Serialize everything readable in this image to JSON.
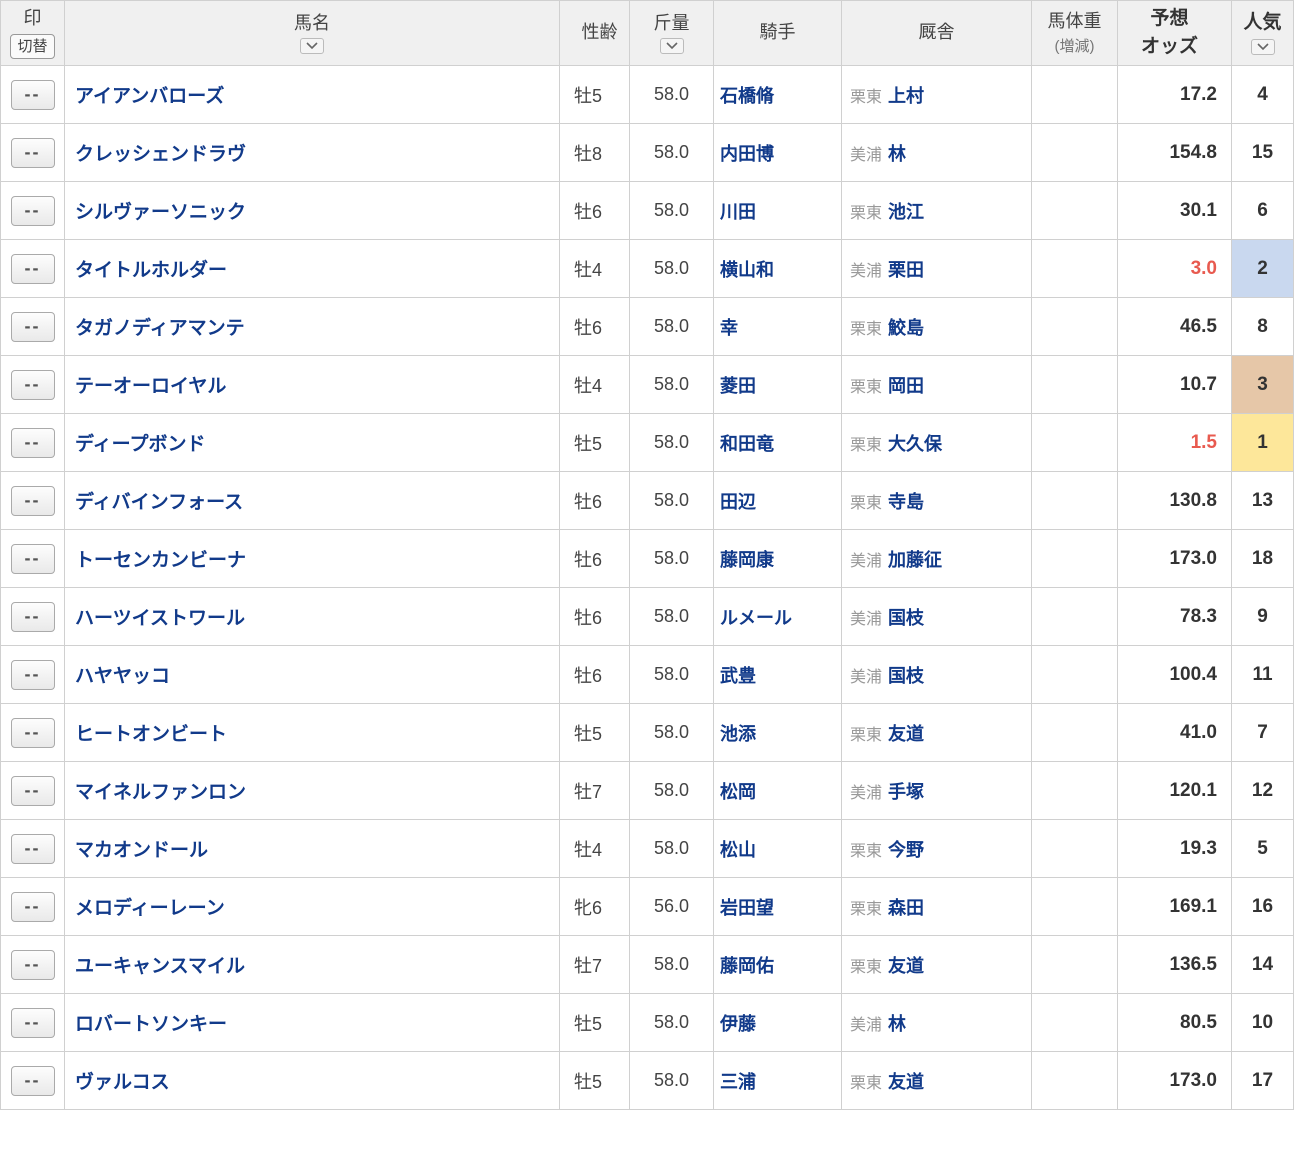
{
  "columns": {
    "mark": {
      "label": "印",
      "swap_label": "切替"
    },
    "name": {
      "label": "馬名"
    },
    "sexage": {
      "label": "性齢"
    },
    "weight": {
      "label": "斤量"
    },
    "jockey": {
      "label": "騎手"
    },
    "stable": {
      "label": "厩舎"
    },
    "bodyweight": {
      "label": "馬体重",
      "sub": "(増減)"
    },
    "odds": {
      "label": "予想",
      "sub": "オッズ"
    },
    "popularity": {
      "label": "人気"
    }
  },
  "mark_button_label": "--",
  "rows": [
    {
      "name": "アイアンバローズ",
      "sexage": "牡5",
      "weight": "58.0",
      "jockey": "石橋脩",
      "stable_loc": "栗東",
      "stable": "上村",
      "odds": "17.2",
      "odds_fav": false,
      "popularity": "4",
      "pop_rank": 4
    },
    {
      "name": "クレッシェンドラヴ",
      "sexage": "牡8",
      "weight": "58.0",
      "jockey": "内田博",
      "stable_loc": "美浦",
      "stable": "林",
      "odds": "154.8",
      "odds_fav": false,
      "popularity": "15",
      "pop_rank": 15
    },
    {
      "name": "シルヴァーソニック",
      "sexage": "牡6",
      "weight": "58.0",
      "jockey": "川田",
      "stable_loc": "栗東",
      "stable": "池江",
      "odds": "30.1",
      "odds_fav": false,
      "popularity": "6",
      "pop_rank": 6
    },
    {
      "name": "タイトルホルダー",
      "sexage": "牡4",
      "weight": "58.0",
      "jockey": "横山和",
      "stable_loc": "美浦",
      "stable": "栗田",
      "odds": "3.0",
      "odds_fav": true,
      "popularity": "2",
      "pop_rank": 2
    },
    {
      "name": "タガノディアマンテ",
      "sexage": "牡6",
      "weight": "58.0",
      "jockey": "幸",
      "stable_loc": "栗東",
      "stable": "鮫島",
      "odds": "46.5",
      "odds_fav": false,
      "popularity": "8",
      "pop_rank": 8
    },
    {
      "name": "テーオーロイヤル",
      "sexage": "牡4",
      "weight": "58.0",
      "jockey": "菱田",
      "stable_loc": "栗東",
      "stable": "岡田",
      "odds": "10.7",
      "odds_fav": false,
      "popularity": "3",
      "pop_rank": 3
    },
    {
      "name": "ディープボンド",
      "sexage": "牡5",
      "weight": "58.0",
      "jockey": "和田竜",
      "stable_loc": "栗東",
      "stable": "大久保",
      "odds": "1.5",
      "odds_fav": true,
      "popularity": "1",
      "pop_rank": 1
    },
    {
      "name": "ディバインフォース",
      "sexage": "牡6",
      "weight": "58.0",
      "jockey": "田辺",
      "stable_loc": "栗東",
      "stable": "寺島",
      "odds": "130.8",
      "odds_fav": false,
      "popularity": "13",
      "pop_rank": 13
    },
    {
      "name": "トーセンカンビーナ",
      "sexage": "牡6",
      "weight": "58.0",
      "jockey": "藤岡康",
      "stable_loc": "美浦",
      "stable": "加藤征",
      "odds": "173.0",
      "odds_fav": false,
      "popularity": "18",
      "pop_rank": 18
    },
    {
      "name": "ハーツイストワール",
      "sexage": "牡6",
      "weight": "58.0",
      "jockey": "ルメール",
      "stable_loc": "美浦",
      "stable": "国枝",
      "odds": "78.3",
      "odds_fav": false,
      "popularity": "9",
      "pop_rank": 9
    },
    {
      "name": "ハヤヤッコ",
      "sexage": "牡6",
      "weight": "58.0",
      "jockey": "武豊",
      "stable_loc": "美浦",
      "stable": "国枝",
      "odds": "100.4",
      "odds_fav": false,
      "popularity": "11",
      "pop_rank": 11
    },
    {
      "name": "ヒートオンビート",
      "sexage": "牡5",
      "weight": "58.0",
      "jockey": "池添",
      "stable_loc": "栗東",
      "stable": "友道",
      "odds": "41.0",
      "odds_fav": false,
      "popularity": "7",
      "pop_rank": 7
    },
    {
      "name": "マイネルファンロン",
      "sexage": "牡7",
      "weight": "58.0",
      "jockey": "松岡",
      "stable_loc": "美浦",
      "stable": "手塚",
      "odds": "120.1",
      "odds_fav": false,
      "popularity": "12",
      "pop_rank": 12
    },
    {
      "name": "マカオンドール",
      "sexage": "牡4",
      "weight": "58.0",
      "jockey": "松山",
      "stable_loc": "栗東",
      "stable": "今野",
      "odds": "19.3",
      "odds_fav": false,
      "popularity": "5",
      "pop_rank": 5
    },
    {
      "name": "メロディーレーン",
      "sexage": "牝6",
      "weight": "56.0",
      "jockey": "岩田望",
      "stable_loc": "栗東",
      "stable": "森田",
      "odds": "169.1",
      "odds_fav": false,
      "popularity": "16",
      "pop_rank": 16
    },
    {
      "name": "ユーキャンスマイル",
      "sexage": "牡7",
      "weight": "58.0",
      "jockey": "藤岡佑",
      "stable_loc": "栗東",
      "stable": "友道",
      "odds": "136.5",
      "odds_fav": false,
      "popularity": "14",
      "pop_rank": 14
    },
    {
      "name": "ロバートソンキー",
      "sexage": "牡5",
      "weight": "58.0",
      "jockey": "伊藤",
      "stable_loc": "美浦",
      "stable": "林",
      "odds": "80.5",
      "odds_fav": false,
      "popularity": "10",
      "pop_rank": 10
    },
    {
      "name": "ヴァルコス",
      "sexage": "牡5",
      "weight": "58.0",
      "jockey": "三浦",
      "stable_loc": "栗東",
      "stable": "友道",
      "odds": "173.0",
      "odds_fav": false,
      "popularity": "17",
      "pop_rank": 17
    }
  ]
}
